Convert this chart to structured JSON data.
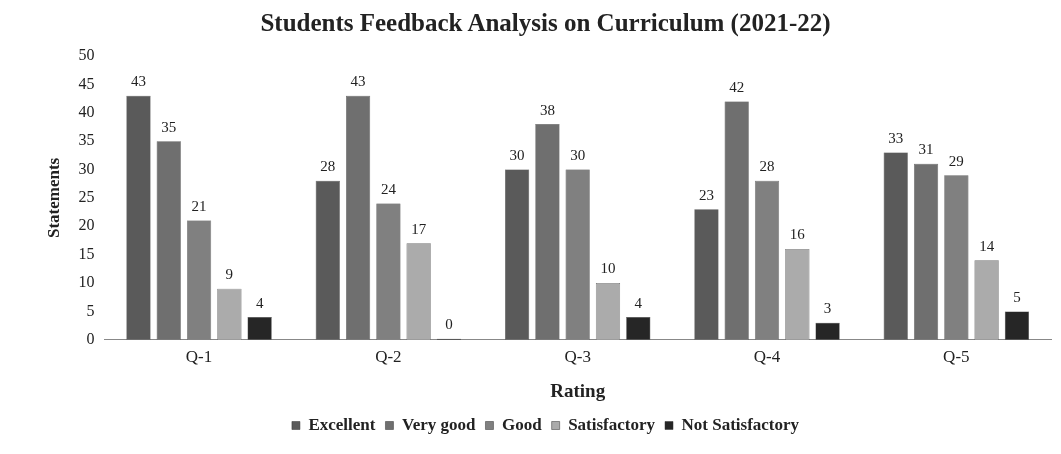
{
  "chart_data": {
    "type": "bar",
    "title": "Students Feedback Analysis on Curriculum (2021-22)",
    "xlabel": "Rating",
    "ylabel": "Statements",
    "categories": [
      "Q-1",
      "Q-2",
      "Q-3",
      "Q-4",
      "Q-5"
    ],
    "series": [
      {
        "name": "Excellent",
        "color": "#5a5a5a",
        "values": [
          43,
          28,
          30,
          23,
          33
        ]
      },
      {
        "name": "Very good",
        "color": "#6f6f6f",
        "values": [
          35,
          43,
          38,
          42,
          31
        ]
      },
      {
        "name": "Good",
        "color": "#808080",
        "values": [
          21,
          24,
          30,
          28,
          29
        ]
      },
      {
        "name": "Satisfactory",
        "color": "#ababab",
        "values": [
          9,
          17,
          10,
          16,
          14
        ]
      },
      {
        "name": "Not Satisfactory",
        "color": "#262626",
        "values": [
          4,
          0,
          4,
          3,
          5
        ]
      }
    ],
    "ylim": [
      0,
      50
    ],
    "yticks": [
      0,
      5,
      10,
      15,
      20,
      25,
      30,
      35,
      40,
      45,
      50
    ],
    "grid": false,
    "legend": "bottom",
    "data_labels": true
  }
}
